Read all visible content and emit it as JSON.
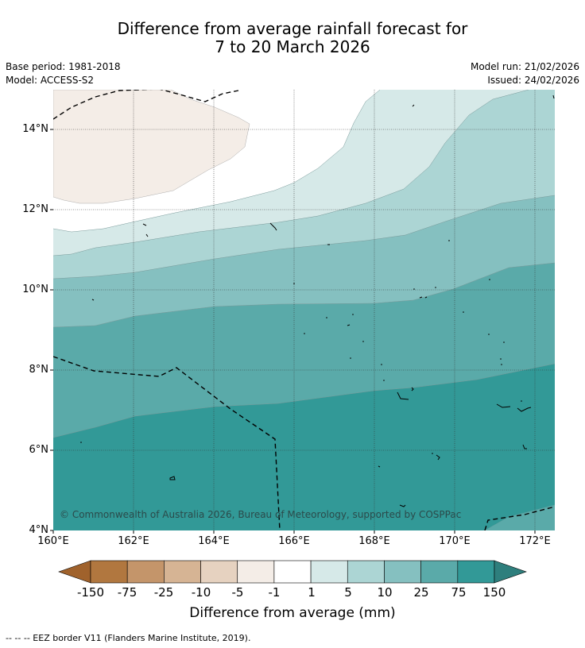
{
  "header": {
    "title_line1": "Difference from average rainfall forecast for",
    "title_line2": "7 to 20 March 2026",
    "base_period": "Base period: 1981-2018",
    "model": "Model: ACCESS-S2",
    "model_run": "Model run: 21/02/2026",
    "issued": "Issued: 24/02/2026"
  },
  "map": {
    "lat_labels": [
      "14°N",
      "12°N",
      "10°N",
      "8°N",
      "6°N",
      "4°N"
    ],
    "lon_labels": [
      "160°E",
      "162°E",
      "164°E",
      "166°E",
      "168°E",
      "170°E",
      "172°E"
    ],
    "copyright": "© Commonwealth of Australia 2026, Bureau of Meteorology, supported by COSPPac"
  },
  "colorbar": {
    "title": "Difference from average (mm)",
    "ticks": [
      "-150",
      "-75",
      "-25",
      "-10",
      "-5",
      "-1",
      "1",
      "5",
      "10",
      "25",
      "75",
      "150"
    ],
    "colors": {
      "under": "#a0622c",
      "c1": "#b1773f",
      "c2": "#c4956a",
      "c3": "#d6b494",
      "c4": "#e6d2c0",
      "c5": "#f4ede7",
      "c6": "#ffffff",
      "c7": "#d6e9e8",
      "c8": "#acd5d4",
      "c9": "#85c0c0",
      "c10": "#5aaaa9",
      "c11": "#329997",
      "over": "#2e7f7d"
    }
  },
  "footnote": "--  --  -- EEZ border V11 (Flanders Marine Institute, 2019)."
}
